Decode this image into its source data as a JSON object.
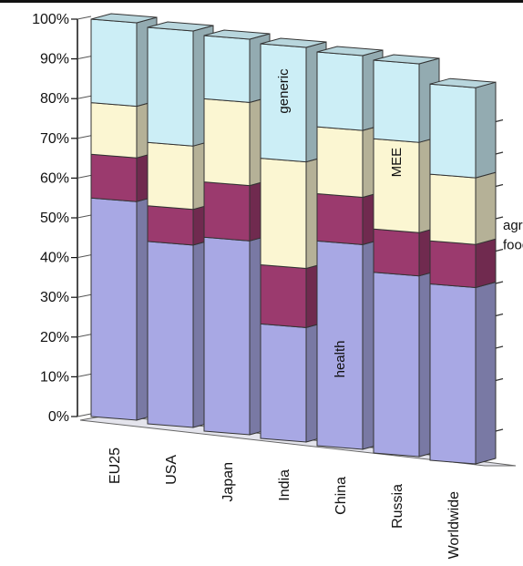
{
  "chart_data": {
    "type": "bar",
    "stacked": true,
    "three_d": true,
    "categories": [
      "EU25",
      "USA",
      "Japan",
      "India",
      "China",
      "Russia",
      "Worldwide"
    ],
    "ylim": [
      0,
      100
    ],
    "yticks": [
      "0%",
      "10%",
      "20%",
      "30%",
      "40%",
      "50%",
      "60%",
      "70%",
      "80%",
      "90%",
      "100%"
    ],
    "series": [
      {
        "key": "health",
        "values": [
          55,
          46,
          49,
          29,
          52,
          46,
          45
        ],
        "color": "#a8a8e4"
      },
      {
        "key": "agrofood",
        "values": [
          11,
          9,
          14,
          15,
          12,
          11,
          11
        ],
        "color": "#9b3a6e"
      },
      {
        "key": "mee",
        "values": [
          13,
          16,
          21,
          27,
          17,
          23,
          17
        ],
        "color": "#fbf6d2"
      },
      {
        "key": "generic",
        "values": [
          21,
          29,
          16,
          29,
          19,
          20,
          23
        ],
        "color": "#cceef6"
      }
    ],
    "annotations": [
      {
        "text": "generic",
        "bar": 3,
        "level": 88
      },
      {
        "text": "MEE",
        "bar": 5,
        "level": 74
      },
      {
        "text": "health",
        "bar": 4,
        "level": 22
      },
      {
        "text": "agro-",
        "bar": 6,
        "level": 60,
        "outside": true
      },
      {
        "text": "food",
        "bar": 6,
        "level": 55,
        "outside": true
      }
    ],
    "grid": "right-wall-ticks",
    "legend": "none"
  }
}
